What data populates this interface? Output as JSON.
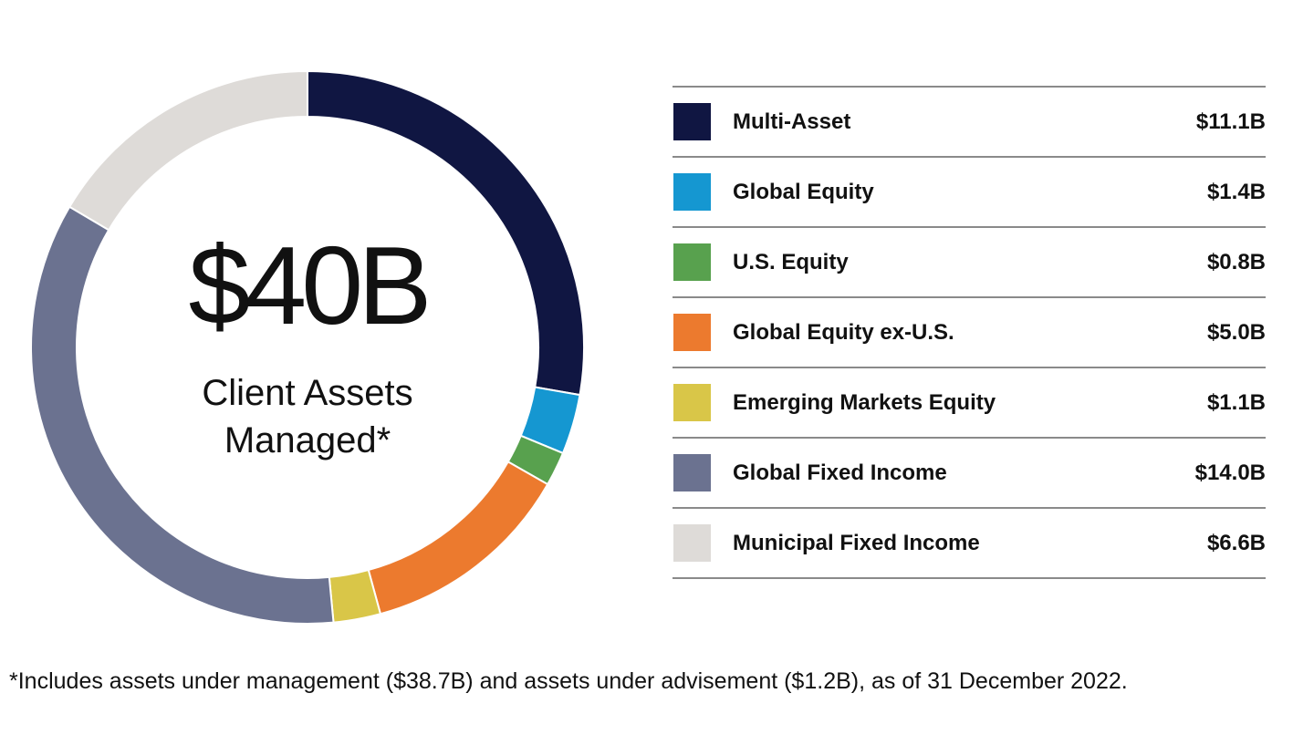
{
  "center": {
    "total": "$40B",
    "caption_line1": "Client Assets",
    "caption_line2": "Managed*"
  },
  "footnote": "*Includes assets under management ($38.7B) and assets under advisement ($1.2B), as of 31 December 2022.",
  "chart_data": {
    "type": "pie",
    "style": "donut",
    "title": "",
    "unit": "$B",
    "start": "top, clockwise",
    "categories": [
      "Multi-Asset",
      "Global Equity",
      "U.S. Equity",
      "Global Equity ex-U.S.",
      "Emerging Markets Equity",
      "Global Fixed Income",
      "Municipal Fixed Income"
    ],
    "values": [
      11.1,
      1.4,
      0.8,
      5.0,
      1.1,
      14.0,
      6.6
    ],
    "labels": [
      "$11.1B",
      "$1.4B",
      "$0.8B",
      "$5.0B",
      "$1.1B",
      "$14.0B",
      "$6.6B"
    ],
    "colors": [
      "#101642",
      "#1597D1",
      "#58A14E",
      "#EC7A2E",
      "#D9C648",
      "#6B7290",
      "#DEDBD8"
    ],
    "legend": "right"
  }
}
